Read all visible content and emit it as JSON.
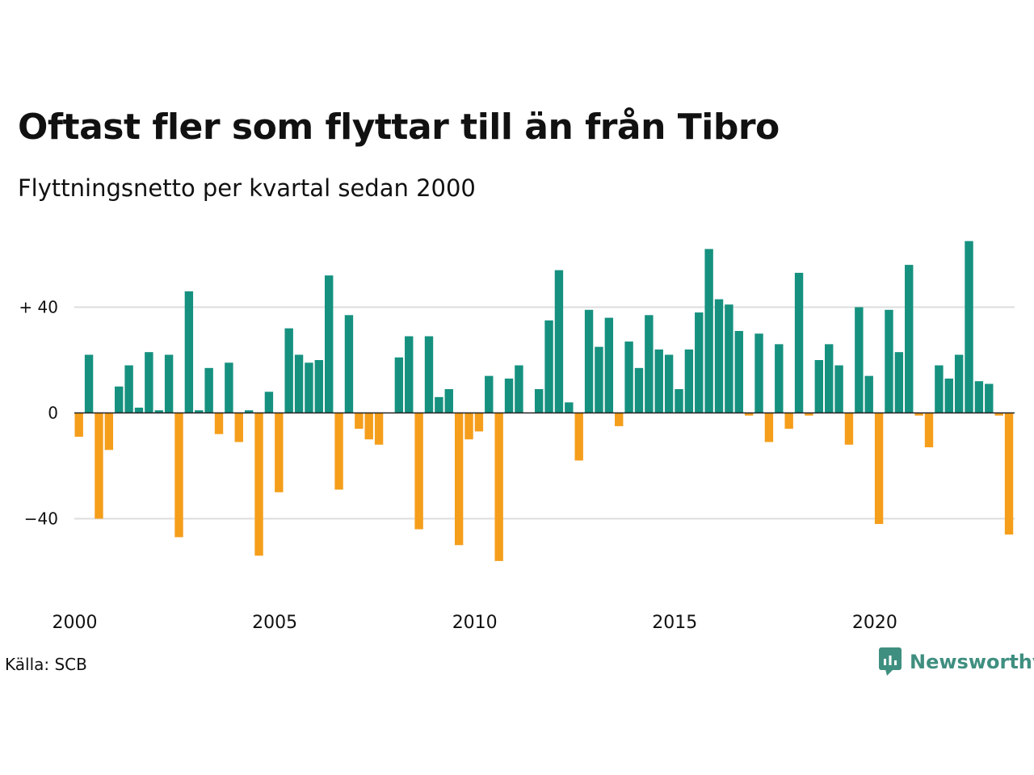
{
  "title": "Oftast fler som flyttar till än från Tibro",
  "subtitle": "Flyttningsnetto per kvartal sedan 2000",
  "source": "Källa: SCB",
  "brand": {
    "name": "Newsworthy",
    "icon": "newsworthy-logo-icon",
    "color": "#3f8f80"
  },
  "colors": {
    "positive": "#16917f",
    "negative": "#f59e1b",
    "grid": "#dddddd",
    "zero_line": "#222222"
  },
  "chart_data": {
    "type": "bar",
    "title": "Oftast fler som flyttar till än från Tibro",
    "subtitle": "Flyttningsnetto per kvartal sedan 2000",
    "xlabel": "",
    "ylabel": "",
    "ylim": [
      -60,
      68
    ],
    "yticks": [
      {
        "value": 40,
        "label": "+ 40"
      },
      {
        "value": 0,
        "label": "0"
      },
      {
        "value": -40,
        "label": "−40"
      }
    ],
    "xticks": [
      {
        "value": 2000,
        "label": "2000"
      },
      {
        "value": 2005,
        "label": "2005"
      },
      {
        "value": 2010,
        "label": "2010"
      },
      {
        "value": 2015,
        "label": "2015"
      },
      {
        "value": 2020,
        "label": "2020"
      }
    ],
    "grid": true,
    "legend": "none",
    "series": [
      {
        "start_year": 2000,
        "periods_per_year": 4,
        "values": [
          -9,
          22,
          -40,
          -14,
          10,
          18,
          2,
          23,
          1,
          22,
          -47,
          46,
          1,
          17,
          -8,
          19,
          -11,
          1,
          -54,
          8,
          -30,
          32,
          22,
          19,
          20,
          52,
          -29,
          37,
          -6,
          -10,
          -12,
          0,
          21,
          29,
          -44,
          29,
          6,
          9,
          -50,
          -10,
          -7,
          14,
          -56,
          13,
          18,
          0,
          9,
          35,
          54,
          4,
          -18,
          39,
          25,
          36,
          -5,
          27,
          17,
          37,
          24,
          22,
          9,
          24,
          38,
          62,
          43,
          41,
          31,
          -1,
          30,
          -11,
          26,
          -6,
          53,
          -1,
          20,
          26,
          18,
          -12,
          40,
          14,
          -42,
          39,
          23,
          56,
          -1,
          -13,
          18,
          13,
          22,
          65,
          12,
          11,
          -1,
          -46
        ]
      }
    ]
  }
}
